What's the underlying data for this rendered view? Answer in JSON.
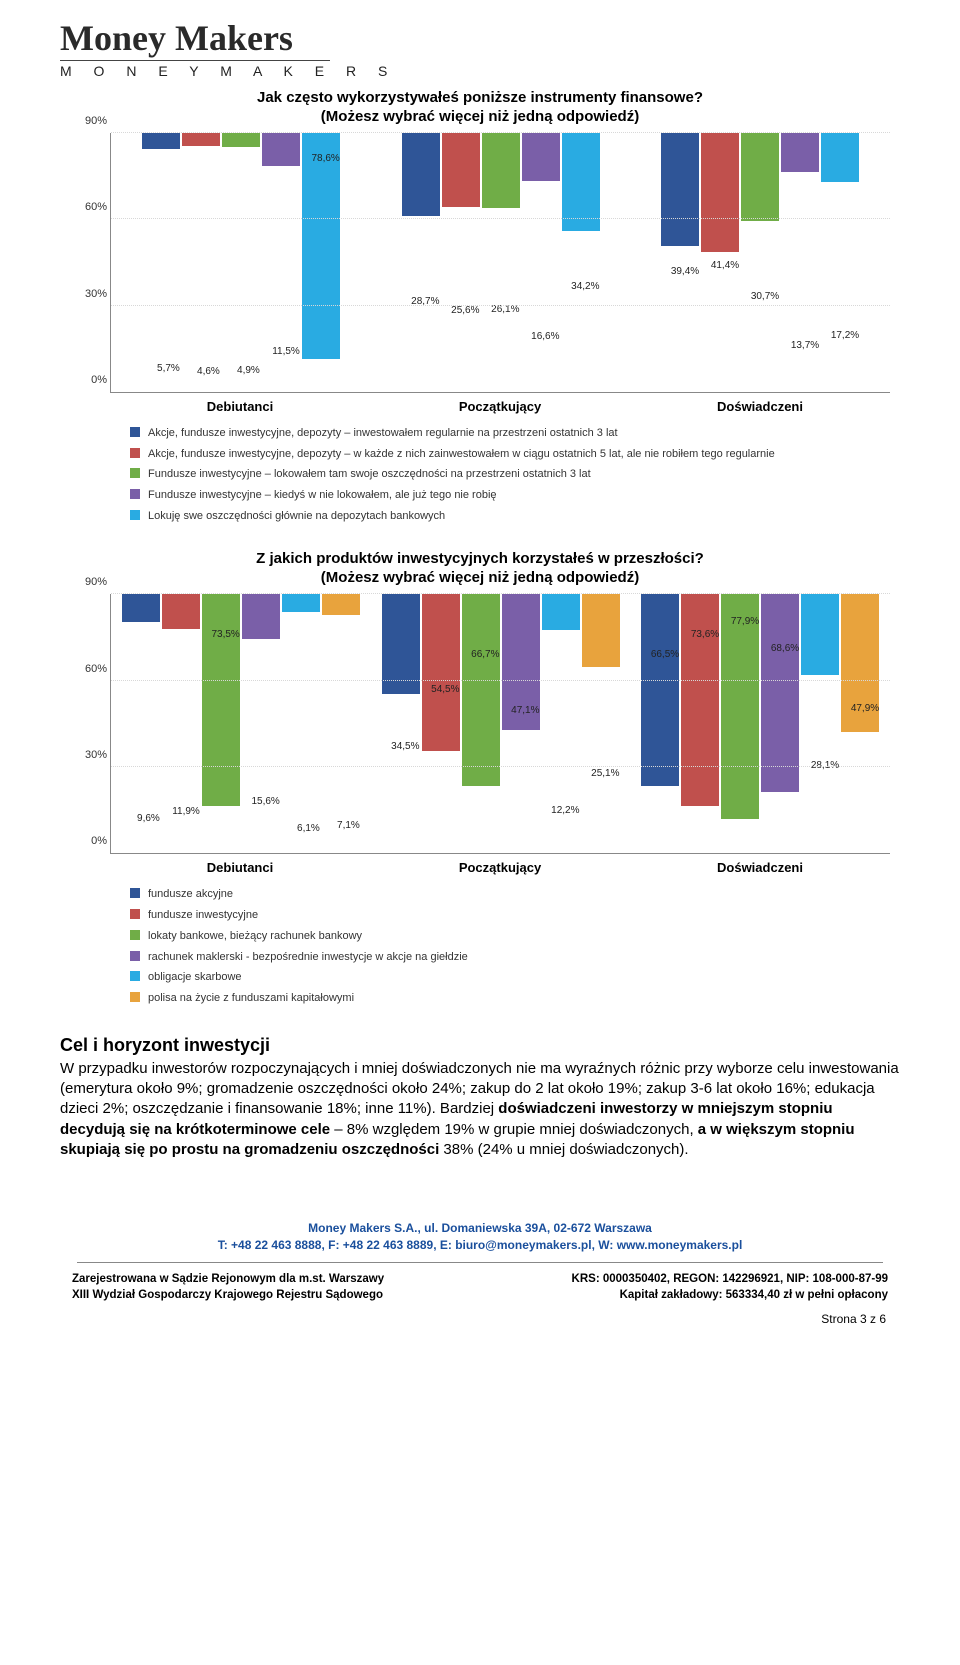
{
  "logo": {
    "script": "Money Makers",
    "sub": "M O N E Y   M A K E R S"
  },
  "chart1": {
    "type": "bar",
    "title": "Jak często wykorzystywałeś poniższe instrumenty finansowe?",
    "subtitle": "(Możesz wybrać więcej niż jedną odpowiedź)",
    "ylim": [
      0,
      90
    ],
    "yticks": [
      "0%",
      "30%",
      "60%",
      "90%"
    ],
    "ytick_pos": [
      0,
      33.33,
      66.67,
      100
    ],
    "categories": [
      "Debiutanci",
      "Początkujący",
      "Doświadczeni"
    ],
    "series_colors": [
      "#2f5597",
      "#c0504d",
      "#70ad47",
      "#7a5fa8",
      "#29abe2"
    ],
    "groups": [
      {
        "values": [
          5.7,
          4.6,
          4.9,
          11.5,
          78.6
        ],
        "labels": [
          "5,7%",
          "4,6%",
          "4,9%",
          "11,5%",
          "78,6%"
        ]
      },
      {
        "values": [
          28.7,
          25.6,
          26.1,
          16.6,
          34.2
        ],
        "labels": [
          "28,7%",
          "25,6%",
          "26,1%",
          "16,6%",
          "34,2%"
        ]
      },
      {
        "values": [
          39.4,
          41.4,
          30.7,
          13.7,
          17.2
        ],
        "labels": [
          "39,4%",
          "41,4%",
          "30,7%",
          "13,7%",
          "17,2%"
        ]
      }
    ],
    "legend": [
      "Akcje, fundusze inwestycyjne, depozyty – inwestowałem regularnie na przestrzeni ostatnich 3 lat",
      "Akcje, fundusze inwestycyjne, depozyty – w każde z nich zainwestowałem w ciągu ostatnich 5 lat, ale nie robiłem tego regularnie",
      "Fundusze inwestycyjne – lokowałem tam swoje oszczędności na przestrzeni ostatnich 3 lat",
      "Fundusze inwestycyjne – kiedyś w nie lokowałem, ale już tego nie robię",
      "Lokuję swe oszczędności głównie na depozytach bankowych"
    ]
  },
  "chart2": {
    "type": "bar",
    "title": "Z jakich produktów inwestycyjnych korzystałeś w przeszłości?",
    "subtitle": "(Możesz wybrać więcej niż jedną odpowiedź)",
    "ylim": [
      0,
      90
    ],
    "yticks": [
      "0%",
      "30%",
      "60%",
      "90%"
    ],
    "ytick_pos": [
      0,
      33.33,
      66.67,
      100
    ],
    "categories": [
      "Debiutanci",
      "Początkujący",
      "Doświadczeni"
    ],
    "series_colors": [
      "#2f5597",
      "#c0504d",
      "#70ad47",
      "#7a5fa8",
      "#29abe2",
      "#e8a33d"
    ],
    "groups": [
      {
        "values": [
          9.6,
          11.9,
          73.5,
          15.6,
          6.1,
          7.1
        ],
        "labels": [
          "9,6%",
          "11,9%",
          "73,5%",
          "15,6%",
          "6,1%",
          "7,1%"
        ]
      },
      {
        "values": [
          34.5,
          54.5,
          66.7,
          47.1,
          12.2,
          25.1
        ],
        "labels": [
          "34,5%",
          "54,5%",
          "66,7%",
          "47,1%",
          "12,2%",
          "25,1%"
        ]
      },
      {
        "values": [
          66.5,
          73.6,
          77.9,
          68.6,
          28.1,
          47.9
        ],
        "labels": [
          "66,5%",
          "73,6%",
          "77,9%",
          "68,6%",
          "28,1%",
          "47,9%"
        ]
      }
    ],
    "legend": [
      "fundusze akcyjne",
      "fundusze inwestycyjne",
      "lokaty bankowe, bieżący rachunek bankowy",
      "rachunek maklerski - bezpośrednie inwestycje w akcje na giełdzie",
      "obligacje skarbowe",
      "polisa na życie z funduszami kapitałowymi"
    ]
  },
  "body": {
    "heading": "Cel i horyzont inwestycji",
    "p1a": "W przypadku inwestorów rozpoczynających i mniej doświadczonych nie ma wyraźnych różnic przy wyborze celu inwestowania (emerytura około 9%; gromadzenie oszczędności około 24%; zakup do 2 lat około 19%; zakup 3-6 lat około 16%; edukacja dzieci 2%; oszczędzanie i finansowanie 18%; inne 11%). Bardziej ",
    "p1b": "doświadczeni inwestorzy w mniejszym stopniu decydują się na krótkoterminowe cele",
    "p1c": " – 8% względem 19% w grupie mniej doświadczonych, ",
    "p1d": "a w większym stopniu skupiają się po prostu na gromadzeniu oszczędności",
    "p1e": " 38% (24% u mniej doświadczonych)."
  },
  "footer": {
    "addr": "Money Makers S.A., ul. Domaniewska 39A, 02-672 Warszawa",
    "contact": "T: +48 22 463 8888, F: +48 22 463 8889, E: biuro@moneymakers.pl, W: www.moneymakers.pl",
    "left1": "Zarejestrowana w Sądzie Rejonowym dla m.st. Warszawy",
    "left2": "XIII Wydział Gospodarczy Krajowego Rejestru Sądowego",
    "right1": "KRS: 0000350402, REGON: 142296921, NIP: 108-000-87-99",
    "right2": "Kapitał zakładowy: 563334,40 zł w pełni opłacony",
    "pagenum": "Strona 3 z 6"
  }
}
